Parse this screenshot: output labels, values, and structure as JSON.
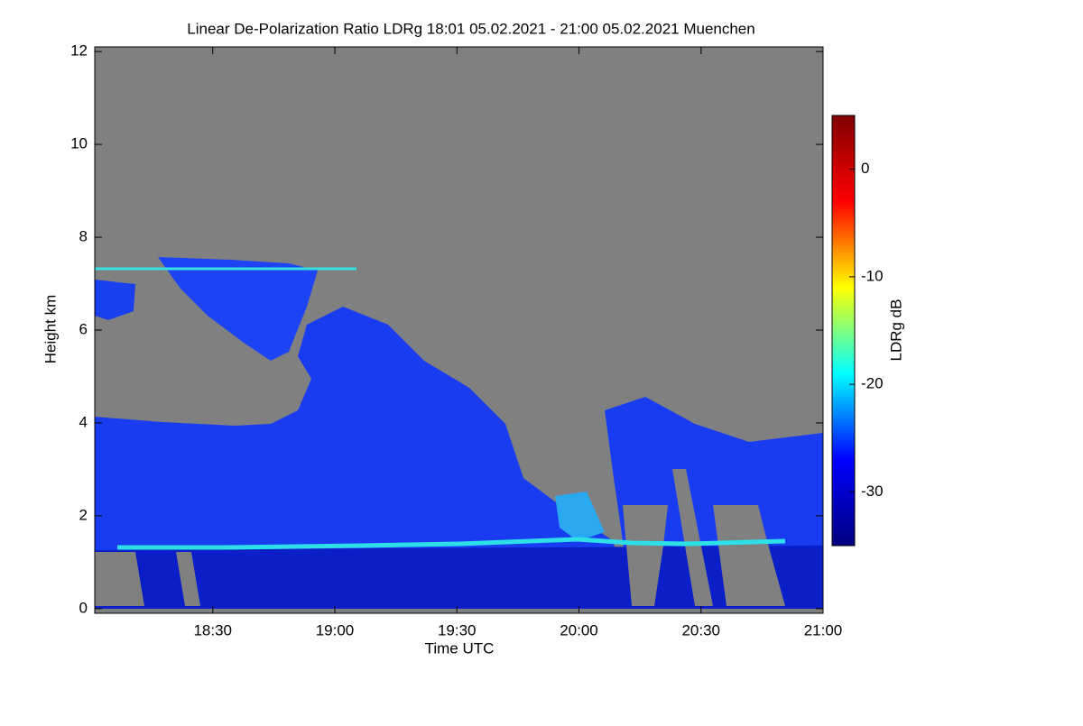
{
  "chart_data": {
    "type": "heatmap",
    "title": "Linear De-Polarization Ratio LDRg   18:01 05.02.2021 - 21:00 05.02.2021 Muenchen",
    "x_label": "Time UTC",
    "y_label": "Height km",
    "xlim": [
      1081,
      1260
    ],
    "xticks": [
      {
        "value": 1110,
        "label": "18:30"
      },
      {
        "value": 1140,
        "label": "19:00"
      },
      {
        "value": 1170,
        "label": "19:30"
      },
      {
        "value": 1200,
        "label": "20:00"
      },
      {
        "value": 1230,
        "label": "20:30"
      },
      {
        "value": 1260,
        "label": "21:00"
      }
    ],
    "ylim": [
      -0.1,
      12.1
    ],
    "yticks": [
      0,
      2,
      4,
      6,
      8,
      10,
      12
    ],
    "colorbar": {
      "label": "LDRg dB",
      "lim": [
        -35,
        5
      ],
      "ticks": [
        0,
        -10,
        -20,
        -30
      ],
      "colormap": [
        "#00007f",
        "#0000ff",
        "#00ffff",
        "#ffff00",
        "#ff0000",
        "#7f0000"
      ]
    },
    "background_color": "#808080"
  }
}
